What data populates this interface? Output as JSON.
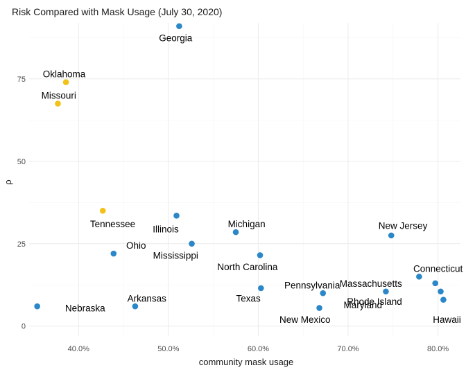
{
  "chart_data": {
    "type": "scatter",
    "title": "Risk Compared with Mask Usage (July 30, 2020)",
    "xlabel": "community mask usage",
    "ylabel": "ρ",
    "xlim": [
      0.345,
      0.825
    ],
    "ylim": [
      -3,
      92
    ],
    "x_ticks": [
      {
        "value": 0.4,
        "label": "40.0%"
      },
      {
        "value": 0.5,
        "label": "50.0%"
      },
      {
        "value": 0.6,
        "label": "60.0%"
      },
      {
        "value": 0.7,
        "label": "70.0%"
      },
      {
        "value": 0.8,
        "label": "80.0%"
      }
    ],
    "y_ticks": [
      {
        "value": 0,
        "label": "0"
      },
      {
        "value": 25,
        "label": "25"
      },
      {
        "value": 50,
        "label": "50"
      },
      {
        "value": 75,
        "label": "75"
      }
    ],
    "grid": true,
    "legend": "none",
    "colors": {
      "high": "#f2c218",
      "normal": "#2b87c8"
    },
    "points": [
      {
        "label": "Georgia",
        "x": 0.512,
        "y": 91.0,
        "group": "normal",
        "label_pos": "below"
      },
      {
        "label": "Oklahoma",
        "x": 0.386,
        "y": 74.0,
        "group": "high",
        "label_pos": "above"
      },
      {
        "label": "Missouri",
        "x": 0.377,
        "y": 67.5,
        "group": "high",
        "label_pos": "above"
      },
      {
        "label": "Tennessee",
        "x": 0.427,
        "y": 35.0,
        "group": "high",
        "label_pos": "below"
      },
      {
        "label": "Illinois",
        "x": 0.509,
        "y": 33.5,
        "group": "normal",
        "label_pos": "below-left"
      },
      {
        "label": "Michigan",
        "x": 0.575,
        "y": 28.5,
        "group": "normal",
        "label_pos": "above-right"
      },
      {
        "label": "New Jersey",
        "x": 0.748,
        "y": 27.5,
        "group": "normal",
        "label_pos": "above"
      },
      {
        "label": "Ohio",
        "x": 0.439,
        "y": 22.0,
        "group": "normal",
        "label_pos": "above-right"
      },
      {
        "label": "Mississippi",
        "x": 0.526,
        "y": 25.0,
        "group": "normal",
        "label_pos": "below-left"
      },
      {
        "label": "North Carolina",
        "x": 0.602,
        "y": 21.5,
        "group": "normal",
        "label_pos": "below"
      },
      {
        "label": "Connecticut",
        "x": 0.779,
        "y": 15.0,
        "group": "normal",
        "label_pos": "above-right"
      },
      {
        "label": "Massachusetts",
        "x": 0.797,
        "y": 13.0,
        "group": "normal",
        "label_pos": "left"
      },
      {
        "label": "Texas",
        "x": 0.603,
        "y": 11.5,
        "group": "normal",
        "label_pos": "below-left"
      },
      {
        "label": "Pennsylvania",
        "x": 0.672,
        "y": 10.0,
        "group": "normal",
        "label_pos": "above"
      },
      {
        "label": "Rhode Island",
        "x": 0.742,
        "y": 10.5,
        "group": "normal",
        "label_pos": "below-right"
      },
      {
        "label": "Hawaii",
        "x": 0.803,
        "y": 10.5,
        "group": "normal",
        "label_pos": "below"
      },
      {
        "label": "Maryland",
        "x": 0.806,
        "y": 8.0,
        "group": "normal",
        "label_pos": "none"
      },
      {
        "label": "Arkansas",
        "x": 0.463,
        "y": 6.0,
        "group": "normal",
        "label_pos": "above"
      },
      {
        "label": "New Mexico",
        "x": 0.668,
        "y": 5.5,
        "group": "normal",
        "label_pos": "below"
      },
      {
        "label": "Nebraska",
        "x": 0.354,
        "y": 6.0,
        "group": "normal",
        "label_pos": "right"
      }
    ],
    "label_overrides": {
      "Maryland": {
        "anchor_x": 0.695,
        "anchor_y": 6.5
      },
      "Hawaii": {
        "anchor_x": 0.81,
        "anchor_y": 2.0
      },
      "Rhode Island": {
        "anchor_x": 0.76,
        "anchor_y": 7.5
      },
      "Massachusetts": {
        "anchor_x": 0.76,
        "anchor_y": 13.0
      },
      "Texas": {
        "anchor_x": 0.589,
        "anchor_y": 8.5
      },
      "New Mexico": {
        "anchor_x": 0.652,
        "anchor_y": 2.0
      },
      "Pennsylvania": {
        "anchor_x": 0.66,
        "anchor_y": 12.5
      },
      "Connecticut": {
        "anchor_x": 0.8,
        "anchor_y": 17.5
      },
      "Ohio": {
        "anchor_x": 0.453,
        "anchor_y": 24.5
      },
      "Mississippi": {
        "anchor_x": 0.508,
        "anchor_y": 21.5
      },
      "North Carolina": {
        "anchor_x": 0.588,
        "anchor_y": 18.0
      },
      "Illinois": {
        "anchor_x": 0.497,
        "anchor_y": 29.5
      },
      "Michigan": {
        "anchor_x": 0.587,
        "anchor_y": 31.0
      },
      "New Jersey": {
        "anchor_x": 0.761,
        "anchor_y": 30.5
      },
      "Tennessee": {
        "anchor_x": 0.438,
        "anchor_y": 31.0
      },
      "Arkansas": {
        "anchor_x": 0.476,
        "anchor_y": 8.5
      },
      "Nebraska": {
        "anchor_x": 0.385,
        "anchor_y": 5.5
      },
      "Georgia": {
        "anchor_x": 0.508,
        "anchor_y": 87.5
      },
      "Oklahoma": {
        "anchor_x": 0.384,
        "anchor_y": 76.5
      },
      "Missouri": {
        "anchor_x": 0.378,
        "anchor_y": 70.0
      }
    }
  }
}
